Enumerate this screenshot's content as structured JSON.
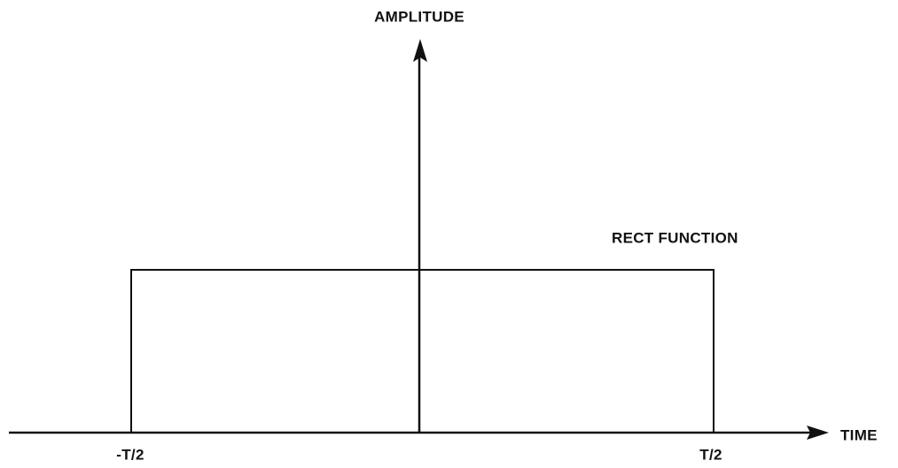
{
  "diagram": {
    "y_axis_label": "AMPLITUDE",
    "x_axis_label": "TIME",
    "curve_label": "RECT FUNCTION",
    "left_edge_label": "-T/2",
    "right_edge_label": "T/2"
  }
}
